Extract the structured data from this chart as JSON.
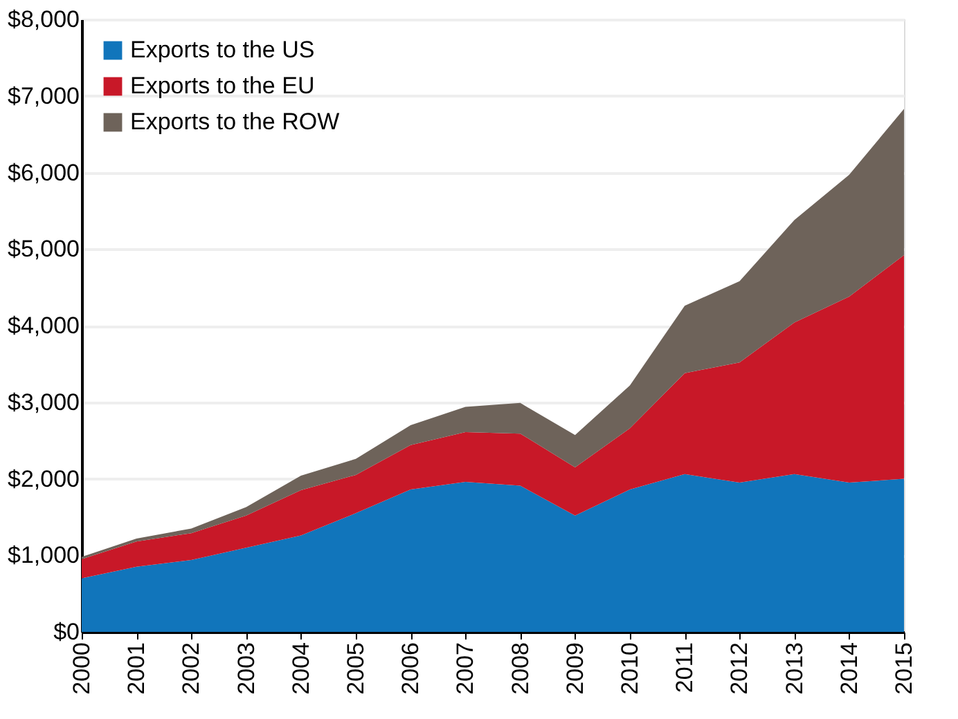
{
  "chart_data": {
    "type": "area",
    "stacked": true,
    "x": [
      2000,
      2001,
      2002,
      2003,
      2004,
      2005,
      2006,
      2007,
      2008,
      2009,
      2010,
      2011,
      2012,
      2013,
      2014,
      2015
    ],
    "series": [
      {
        "name": "Exports to the US",
        "color": "#1175bb",
        "values": [
          700,
          850,
          940,
          1100,
          1260,
          1550,
          1860,
          1960,
          1910,
          1520,
          1860,
          2060,
          1950,
          2060,
          1950,
          2000
        ]
      },
      {
        "name": "Exports to the EU",
        "color": "#c81828",
        "values": [
          250,
          330,
          350,
          420,
          590,
          500,
          580,
          650,
          680,
          630,
          800,
          1320,
          1570,
          1980,
          2430,
          2920
        ]
      },
      {
        "name": "Exports to the ROW",
        "color": "#6e635a",
        "values": [
          30,
          40,
          60,
          110,
          190,
          210,
          260,
          330,
          400,
          420,
          560,
          880,
          1060,
          1340,
          1590,
          1910
        ]
      }
    ],
    "xlim": [
      2000,
      2015
    ],
    "xticks": [
      2000,
      2001,
      2002,
      2003,
      2004,
      2005,
      2006,
      2007,
      2008,
      2009,
      2010,
      2011,
      2012,
      2013,
      2014,
      2015
    ],
    "ylim": [
      0,
      8000
    ],
    "yticks": [
      {
        "value": 0,
        "label": "$0"
      },
      {
        "value": 1000,
        "label": "$1,000"
      },
      {
        "value": 2000,
        "label": "$2,000"
      },
      {
        "value": 3000,
        "label": "$3,000"
      },
      {
        "value": 4000,
        "label": "$4,000"
      },
      {
        "value": 5000,
        "label": "$5,000"
      },
      {
        "value": 6000,
        "label": "$6,000"
      },
      {
        "value": 7000,
        "label": "$7,000"
      },
      {
        "value": 8000,
        "label": "$8,000"
      }
    ],
    "grid": "y",
    "legend": "top left"
  }
}
